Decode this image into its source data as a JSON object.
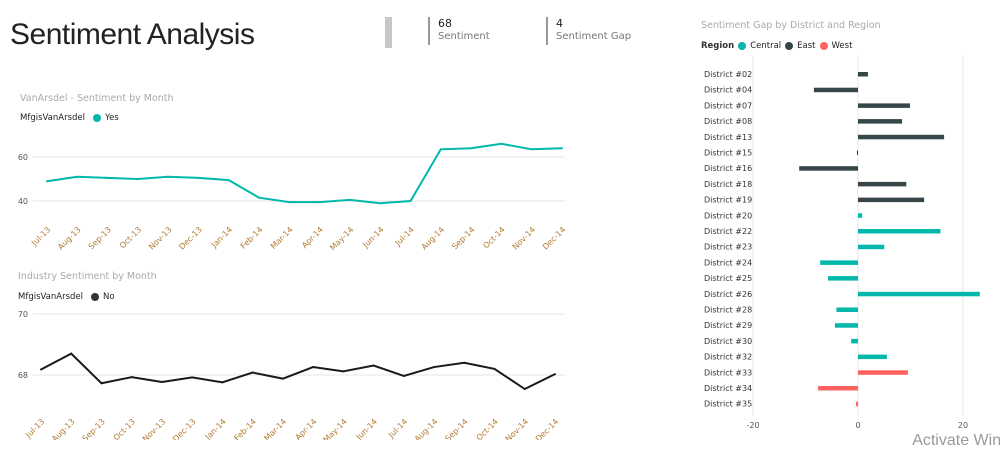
{
  "page": {
    "title": "Sentiment Analysis"
  },
  "cards": [
    {
      "value": "68",
      "label": "Sentiment"
    },
    {
      "value": "4",
      "label": "Sentiment Gap"
    }
  ],
  "watermark": "Activate Wind",
  "chart_data": [
    {
      "type": "line",
      "title": "VanArsdel - Sentiment by Month",
      "legend_title": "MfgisVanArsdel",
      "x": [
        "Jul-13",
        "Aug-13",
        "Sep-13",
        "Oct-13",
        "Nov-13",
        "Dec-13",
        "Jan-14",
        "Feb-14",
        "Mar-14",
        "Apr-14",
        "May-14",
        "Jun-14",
        "Jul-14",
        "Aug-14",
        "Sep-14",
        "Oct-14",
        "Nov-14",
        "Dec-14"
      ],
      "series": [
        {
          "name": "Yes",
          "color": "#01b8aa",
          "values": [
            49,
            51,
            50.5,
            50,
            51,
            50.5,
            49.5,
            41.5,
            39.5,
            39.5,
            40.5,
            39,
            40,
            63.5,
            64,
            66,
            63.5,
            64
          ]
        }
      ],
      "yticks": [
        40,
        60
      ],
      "ylim": [
        30,
        72
      ],
      "grid": true,
      "legend": "top-left"
    },
    {
      "type": "line",
      "title": "Industry Sentiment by Month",
      "legend_title": "MfgisVanArsdel",
      "x": [
        "Jul-13",
        "Aug-13",
        "Sep-13",
        "Oct-13",
        "Nov-13",
        "Dec-13",
        "Jan-14",
        "Feb-14",
        "Mar-14",
        "Apr-14",
        "May-14",
        "Jun-14",
        "Jul-14",
        "Aug-14",
        "Sep-14",
        "Oct-14",
        "Nov-14",
        "Dec-14"
      ],
      "series": [
        {
          "name": "No",
          "color": "#1a1a1a",
          "values": [
            68.18,
            68.7,
            67.73,
            67.93,
            67.77,
            67.92,
            67.76,
            68.08,
            67.88,
            68.26,
            68.12,
            68.31,
            67.97,
            68.26,
            68.4,
            68.2,
            67.54,
            68.03
          ]
        }
      ],
      "yticks": [
        68,
        70
      ],
      "ylim": [
        67.4,
        70
      ],
      "grid": true,
      "legend": "top-left"
    },
    {
      "type": "bar",
      "orientation": "horizontal",
      "title": "Sentiment Gap by District and Region",
      "legend_title": "Region",
      "legend": [
        {
          "name": "Central",
          "color": "#01b8aa"
        },
        {
          "name": "East",
          "color": "#374649"
        },
        {
          "name": "West",
          "color": "#fd625e"
        }
      ],
      "categories": [
        "District #02",
        "District #04",
        "District #07",
        "District #08",
        "District #13",
        "District #15",
        "District #16",
        "District #18",
        "District #19",
        "District #20",
        "District #22",
        "District #23",
        "District #24",
        "District #25",
        "District #26",
        "District #28",
        "District #29",
        "District #30",
        "District #32",
        "District #33",
        "District #34",
        "District #35"
      ],
      "regions": [
        "East",
        "East",
        "East",
        "East",
        "East",
        "East",
        "East",
        "East",
        "East",
        "Central",
        "Central",
        "Central",
        "Central",
        "Central",
        "Central",
        "Central",
        "Central",
        "Central",
        "Central",
        "West",
        "West",
        "West"
      ],
      "values": [
        1.9,
        -8.4,
        9.9,
        8.4,
        16.4,
        -0.2,
        -11.2,
        9.2,
        12.6,
        0.8,
        15.7,
        5,
        -7.2,
        -5.7,
        23.2,
        -4.1,
        -4.4,
        -1.3,
        5.5,
        9.5,
        -7.6,
        -0.4
      ],
      "xticks": [
        -20,
        0,
        20
      ],
      "xlim": [
        -20,
        25
      ],
      "grid": true
    }
  ]
}
